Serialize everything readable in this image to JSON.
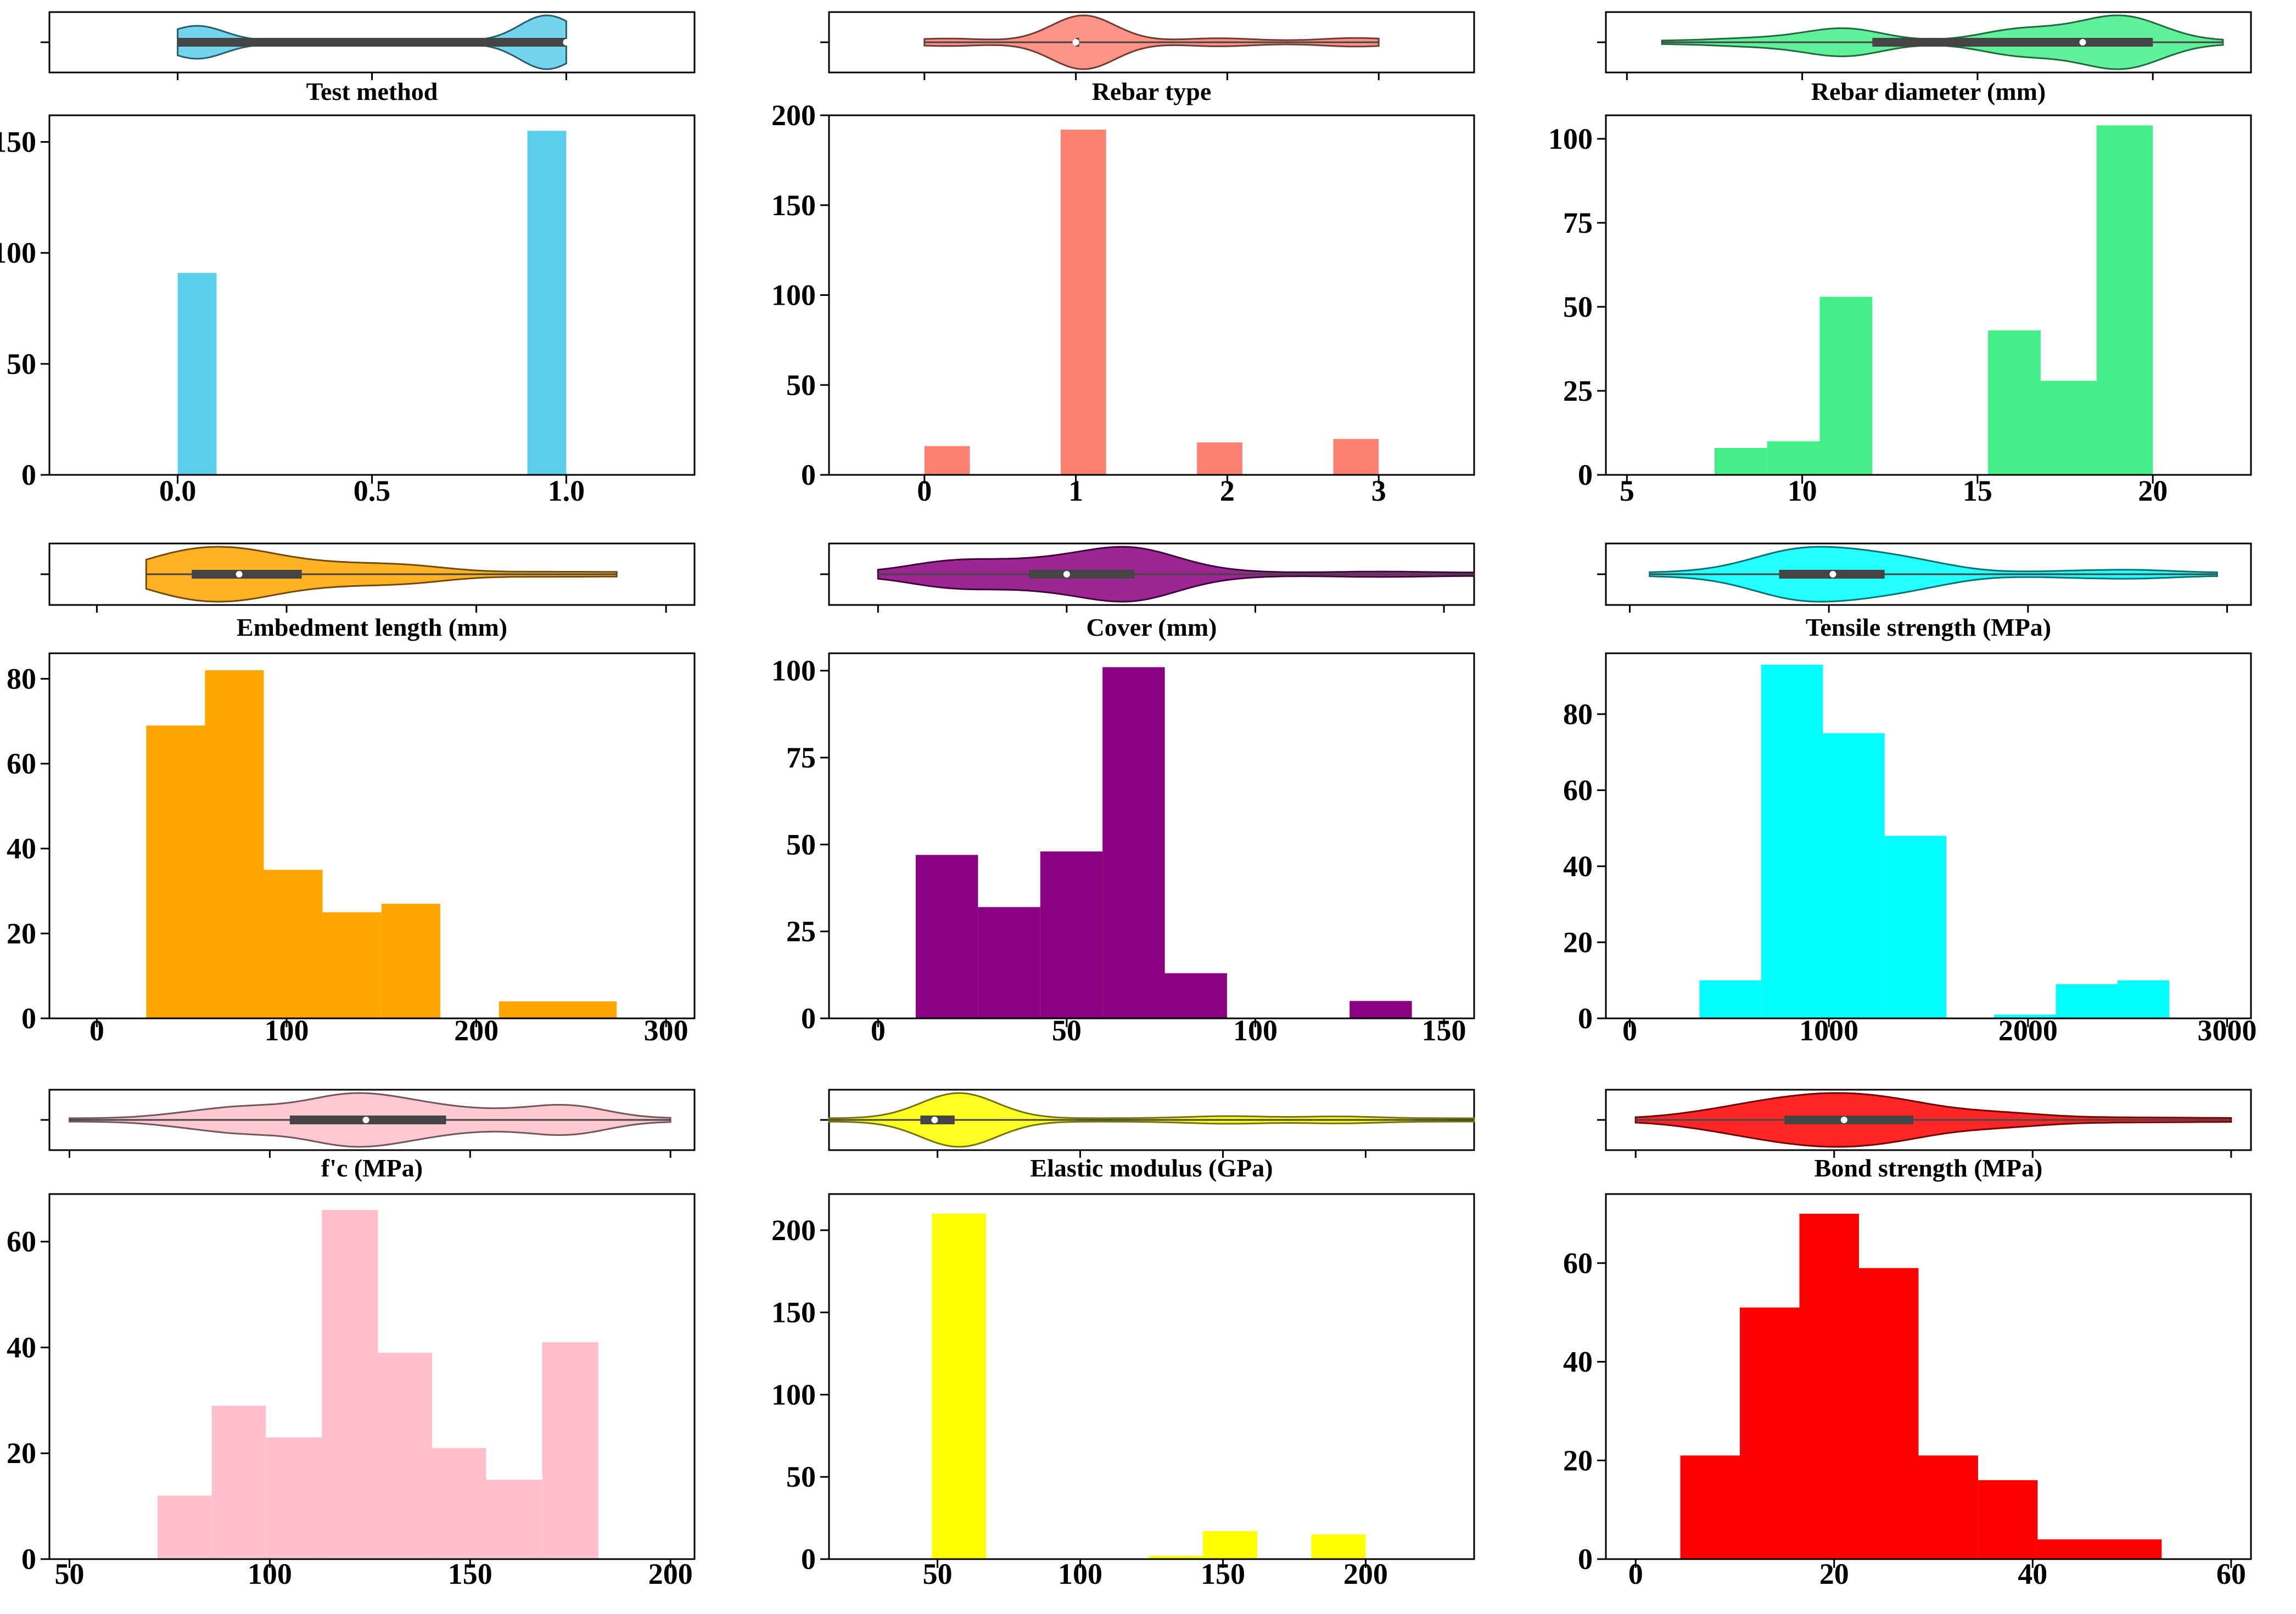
{
  "chart_data": [
    {
      "type": "bar",
      "xlabel": "Test method",
      "color": "#5BCEEA",
      "xlim": [
        -0.33,
        1.33
      ],
      "xticks": [
        0.0,
        0.5,
        1.0
      ],
      "xtick_labels": [
        "0.0",
        "0.5",
        "1.0"
      ],
      "ylim": [
        0,
        162
      ],
      "yticks": [
        0,
        50,
        100,
        150
      ],
      "bins": [
        [
          0.0,
          0.1,
          91
        ],
        [
          0.9,
          1.0,
          155
        ]
      ],
      "violin": {
        "min": 0,
        "max": 1,
        "q1": 0,
        "median": 1,
        "q3": 1
      }
    },
    {
      "type": "bar",
      "xlabel": "Rebar type",
      "color": "#FA8072",
      "xlim": [
        -0.63,
        3.63
      ],
      "xticks": [
        0,
        1,
        2,
        3
      ],
      "xtick_labels": [
        "0",
        "1",
        "2",
        "3"
      ],
      "ylim": [
        0,
        200
      ],
      "yticks": [
        0,
        50,
        100,
        150,
        200
      ],
      "bins": [
        [
          0.0,
          0.3,
          16
        ],
        [
          0.9,
          1.2,
          192
        ],
        [
          1.8,
          2.1,
          18
        ],
        [
          2.7,
          3.0,
          20
        ]
      ],
      "violin": {
        "min": 0,
        "max": 3,
        "q1": 1,
        "median": 1,
        "q3": 1
      }
    },
    {
      "type": "bar",
      "xlabel": "Rebar diameter (mm)",
      "color": "#44EE88",
      "xlim": [
        4.4,
        22.8
      ],
      "xticks": [
        5,
        10,
        15,
        20
      ],
      "xtick_labels": [
        "5",
        "10",
        "15",
        "20"
      ],
      "ylim": [
        0,
        107
      ],
      "yticks": [
        0,
        25,
        50,
        75,
        100
      ],
      "bins": [
        [
          7.5,
          8.75,
          0
        ],
        [
          7.5,
          9.0,
          8
        ],
        [
          9.0,
          10.5,
          10
        ],
        [
          10.5,
          12.0,
          53
        ],
        [
          15.3,
          16.8,
          43
        ],
        [
          16.8,
          18.4,
          28
        ],
        [
          18.4,
          20.0,
          104
        ]
      ],
      "violin": {
        "min": 6,
        "max": 22,
        "q1": 12,
        "median": 18,
        "q3": 20
      }
    },
    {
      "type": "bar",
      "xlabel": "Embedment length (mm)",
      "color": "#FFA500",
      "xlim": [
        -25,
        315
      ],
      "xticks": [
        0,
        100,
        200,
        300
      ],
      "xtick_labels": [
        "0",
        "100",
        "200",
        "300"
      ],
      "ylim": [
        0,
        86
      ],
      "yticks": [
        0,
        20,
        40,
        60,
        80
      ],
      "bins": [
        [
          26,
          57,
          69
        ],
        [
          57,
          88,
          82
        ],
        [
          88,
          119,
          35
        ],
        [
          119,
          150,
          25
        ],
        [
          150,
          181,
          27
        ],
        [
          212,
          274,
          4
        ]
      ],
      "violin": {
        "min": 26,
        "max": 274,
        "q1": 50,
        "median": 75,
        "q3": 108
      }
    },
    {
      "type": "bar",
      "xlabel": "Cover (mm)",
      "color": "#8B0080",
      "xlim": [
        -13,
        158
      ],
      "xticks": [
        0,
        50,
        100,
        150
      ],
      "xtick_labels": [
        "0",
        "50",
        "100",
        "150"
      ],
      "ylim": [
        0,
        105
      ],
      "yticks": [
        0,
        25,
        50,
        75,
        100
      ],
      "bins": [
        [
          10,
          26.5,
          47
        ],
        [
          26.5,
          43,
          32
        ],
        [
          43,
          59.5,
          48
        ],
        [
          59.5,
          76,
          101
        ],
        [
          76,
          92.5,
          13
        ],
        [
          125,
          141.5,
          5
        ]
      ],
      "violin": {
        "min": 0,
        "max": 158,
        "q1": 40,
        "median": 50,
        "q3": 68
      }
    },
    {
      "type": "bar",
      "xlabel": "Tensile strength (MPa)",
      "color": "#00FFFF",
      "xlim": [
        -120,
        3120
      ],
      "xticks": [
        0,
        1000,
        2000,
        3000
      ],
      "xtick_labels": [
        "0",
        "1000",
        "2000",
        "3000"
      ],
      "ylim": [
        0,
        96
      ],
      "yticks": [
        0,
        20,
        40,
        60,
        80
      ],
      "bins": [
        [
          350,
          660,
          10
        ],
        [
          660,
          970,
          93
        ],
        [
          970,
          1280,
          75
        ],
        [
          1280,
          1590,
          48
        ],
        [
          1830,
          2140,
          1
        ],
        [
          2140,
          2450,
          9
        ],
        [
          2450,
          2710,
          10
        ]
      ],
      "violin": {
        "min": 100,
        "max": 2950,
        "q1": 750,
        "median": 1020,
        "q3": 1280
      }
    },
    {
      "type": "bar",
      "xlabel": "f'c (MPa)",
      "color": "#FFC0CB",
      "xlim": [
        45,
        206
      ],
      "xticks": [
        50,
        100,
        150,
        200
      ],
      "xtick_labels": [
        "50",
        "100",
        "150",
        "200"
      ],
      "ylim": [
        0,
        69
      ],
      "yticks": [
        0,
        20,
        40,
        60
      ],
      "bins": [
        [
          72,
          85.5,
          12
        ],
        [
          85.5,
          99,
          29
        ],
        [
          99,
          113,
          23
        ],
        [
          113,
          127,
          66
        ],
        [
          127,
          140.5,
          39
        ],
        [
          140.5,
          154,
          21
        ],
        [
          154,
          168,
          15
        ],
        [
          168,
          182,
          41
        ]
      ],
      "violin": {
        "min": 50,
        "max": 200,
        "q1": 105,
        "median": 124,
        "q3": 144
      }
    },
    {
      "type": "bar",
      "xlabel": "Elastic modulus (GPa)",
      "color": "#FFFF00",
      "xlim": [
        12,
        238
      ],
      "xticks": [
        50,
        100,
        150,
        200
      ],
      "xtick_labels": [
        "50",
        "100",
        "150",
        "200"
      ],
      "ylim": [
        0,
        222
      ],
      "yticks": [
        0,
        50,
        100,
        150,
        200
      ],
      "bins": [
        [
          48,
          67,
          210
        ],
        [
          124,
          143,
          2
        ],
        [
          143,
          162,
          17
        ],
        [
          181,
          200,
          15
        ]
      ],
      "violin": {
        "min": 12,
        "max": 238,
        "q1": 44,
        "median": 49,
        "q3": 56
      }
    },
    {
      "type": "bar",
      "xlabel": "Bond strength (MPa)",
      "color": "#FF0000",
      "xlim": [
        -3,
        62
      ],
      "xticks": [
        0,
        20,
        40,
        60
      ],
      "xtick_labels": [
        "0",
        "20",
        "40",
        "60"
      ],
      "ylim": [
        0,
        74
      ],
      "yticks": [
        0,
        20,
        40,
        60
      ],
      "bins": [
        [
          4.5,
          10.5,
          21
        ],
        [
          10.5,
          16.5,
          51
        ],
        [
          16.5,
          22.5,
          70
        ],
        [
          22.5,
          28.5,
          59
        ],
        [
          28.5,
          34.5,
          21
        ],
        [
          34.5,
          40.5,
          16
        ],
        [
          40.5,
          53.0,
          4
        ]
      ],
      "violin": {
        "min": 0,
        "max": 60,
        "q1": 15,
        "median": 21,
        "q3": 28
      }
    }
  ]
}
